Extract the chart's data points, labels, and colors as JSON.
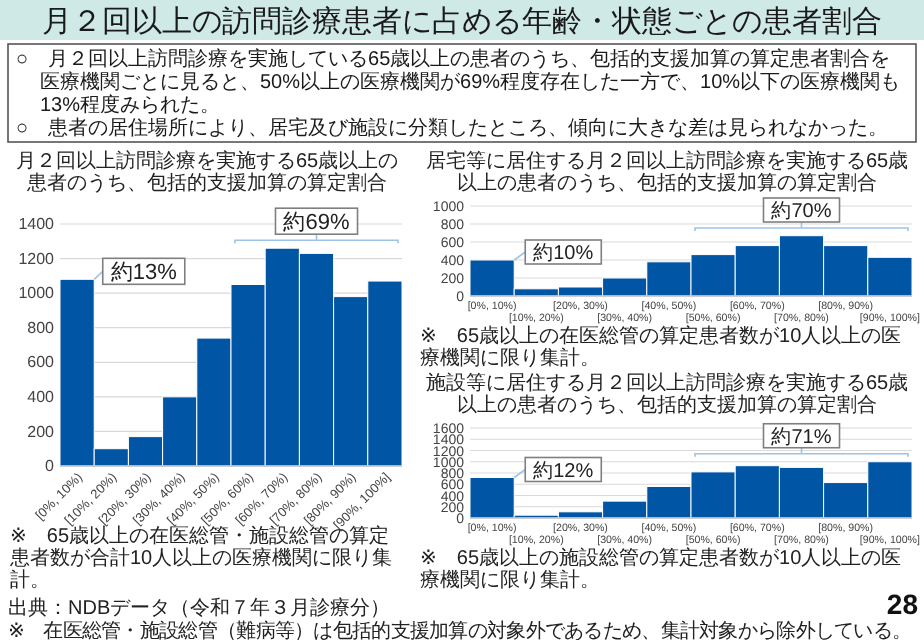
{
  "chart_data": [
    {
      "type": "other",
      "title": "月２回以上の訪問診療患者に占める年齢・状態ごとの患者割合",
      "annotations": [
        "○　月２回以上訪問診療を実施している65歳以上の患者のうち、包括的支援加算の算定患者割合を医療機関ごとに見ると、50%以上の医療機関が69%程度存在した一方で、10%以下の医療機関も13%程度みられた。",
        "○　患者の居住場所により、居宅及び施設に分類したところ、傾向に大きな差は見られなかった。",
        "出典：NDBデータ（令和７年３月診療分）",
        "※　在医総管・施設総管（難病等）は包括的支援加算の対象外であるため、集計対象から除外している。",
        "28"
      ]
    },
    {
      "type": "bar",
      "title": "月２回以上訪問診療を実施する65歳以上の患者のうち、包括的支援加算の算定割合",
      "categories": [
        "[0%, 10%)",
        "[10%, 20%)",
        "[20%, 30%)",
        "[30%, 40%)",
        "[40%, 50%)",
        "[50%, 60%)",
        "[60%, 70%)",
        "[70%, 80%)",
        "[80%, 90%)",
        "[90%, 100%]"
      ],
      "values": [
        1080,
        100,
        170,
        400,
        740,
        1050,
        1260,
        1230,
        980,
        1070
      ],
      "color": "#0055a5",
      "ylim": [
        0,
        1400
      ],
      "yticks": [
        0,
        200,
        400,
        600,
        800,
        1000,
        1200,
        1400
      ],
      "grid": "y",
      "annotations": [
        "約13%",
        "約69%",
        "※　65歳以上の在医総管・施設総管の算定患者数が合計10人以上の医療機関に限り集計。"
      ]
    },
    {
      "type": "bar",
      "title": "居宅等に居住する月２回以上訪問診療を実施する65歳以上の患者のうち、包括的支援加算の算定割合",
      "categories": [
        "[0%, 10%)",
        "[10%, 20%)",
        "[20%, 30%)",
        "[30%, 40%)",
        "[40%, 50%)",
        "[50%, 60%)",
        "[60%, 70%)",
        "[70%, 80%)",
        "[80%, 90%)",
        "[90%, 100%]"
      ],
      "values": [
        400,
        80,
        100,
        200,
        380,
        460,
        560,
        670,
        560,
        430
      ],
      "color": "#0055a5",
      "ylim": [
        0,
        1000
      ],
      "yticks": [
        0,
        200,
        400,
        600,
        800,
        1000
      ],
      "grid": "y",
      "annotations": [
        "約10%",
        "約70%",
        "※　65歳以上の在医総管の算定患者数が10人以上の医療機関に限り集計。"
      ]
    },
    {
      "type": "bar",
      "title": "施設等に居住する月２回以上訪問診療を実施する65歳以上の患者のうち、包括的支援加算の算定割合",
      "categories": [
        "[0%, 10%)",
        "[10%, 20%)",
        "[20%, 30%)",
        "[30%, 40%)",
        "[40%, 50%)",
        "[50%, 60%)",
        "[60%, 70%)",
        "[70%, 80%)",
        "[80%, 90%)",
        "[90%, 100%]"
      ],
      "values": [
        720,
        50,
        110,
        300,
        560,
        820,
        930,
        900,
        630,
        1000
      ],
      "color": "#0055a5",
      "ylim": [
        0,
        1600
      ],
      "yticks": [
        0,
        200,
        400,
        600,
        800,
        1000,
        1200,
        1400,
        1600
      ],
      "grid": "y",
      "annotations": [
        "約12%",
        "約71%",
        "※　65歳以上の施設総管の算定患者数が10人以上の医療機関に限り集計。"
      ]
    }
  ]
}
